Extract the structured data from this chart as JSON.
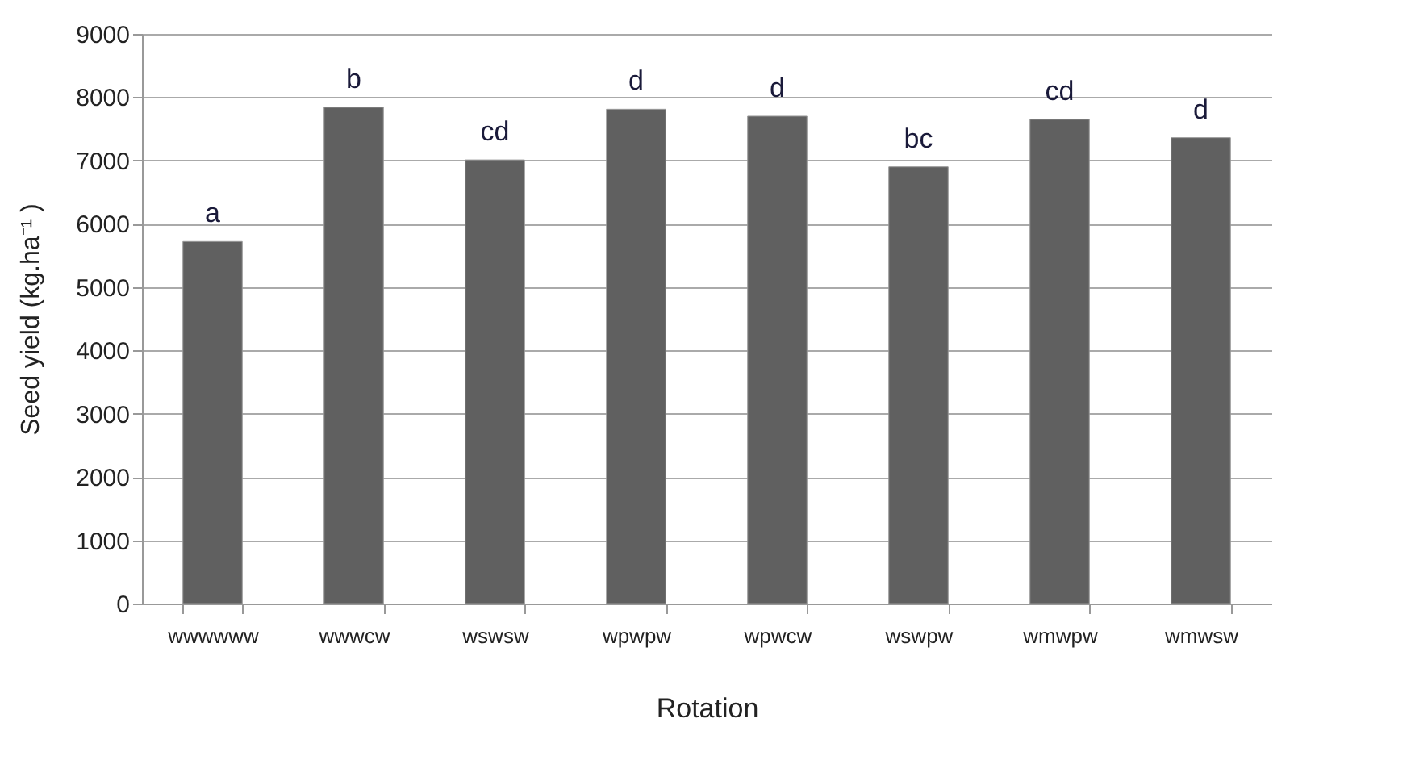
{
  "chart_data": {
    "type": "bar",
    "xlabel": "Rotation",
    "ylabel": "Seed yield (kg.ha⁻¹ )",
    "categories": [
      "wwwwww",
      "wwwcw",
      "wswsw",
      "wpwpw",
      "wpwcw",
      "wswpw",
      "wmwpw",
      "wmwsw"
    ],
    "values": [
      5720,
      7840,
      7010,
      7810,
      7700,
      6900,
      7650,
      7360
    ],
    "color": "#606060",
    "ylim": [
      0,
      9000
    ],
    "yticks": [
      0,
      1000,
      2000,
      3000,
      4000,
      5000,
      6000,
      7000,
      8000,
      9000
    ],
    "grid": "y",
    "annotations": [
      {
        "text": "a",
        "x": "wwwwww",
        "y": 5720
      },
      {
        "text": "b",
        "x": "wwwcw",
        "y": 7840
      },
      {
        "text": "cd",
        "x": "wswsw",
        "y": 7010
      },
      {
        "text": "d",
        "x": "wpwpw",
        "y": 7810
      },
      {
        "text": "d",
        "x": "wpwcw",
        "y": 7700
      },
      {
        "text": "bc",
        "x": "wswpw",
        "y": 6900
      },
      {
        "text": "cd",
        "x": "wmwpw",
        "y": 7650
      },
      {
        "text": "d",
        "x": "wmwsw",
        "y": 7360
      }
    ]
  }
}
